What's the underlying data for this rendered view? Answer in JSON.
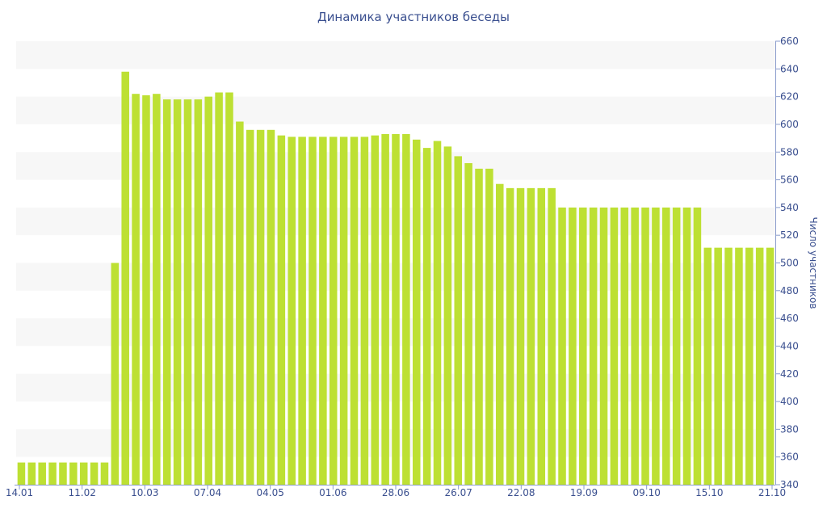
{
  "chart_data": {
    "type": "bar",
    "title": "Динамика участников беседы",
    "xlabel": "",
    "ylabel": "Число участников",
    "ylim": [
      340,
      660
    ],
    "yticks": [
      340,
      360,
      380,
      400,
      420,
      440,
      460,
      480,
      500,
      520,
      540,
      560,
      580,
      600,
      620,
      640,
      660
    ],
    "x_tick_labels": [
      "14.01",
      "11.02",
      "10.03",
      "07.04",
      "04.05",
      "01.06",
      "28.06",
      "26.07",
      "22.08",
      "19.09",
      "09.10",
      "15.10",
      "21.10"
    ],
    "values": [
      356,
      356,
      356,
      356,
      356,
      356,
      356,
      356,
      356,
      500,
      638,
      622,
      621,
      622,
      618,
      618,
      618,
      618,
      620,
      623,
      623,
      602,
      596,
      596,
      596,
      592,
      591,
      591,
      591,
      591,
      591,
      591,
      591,
      591,
      592,
      593,
      593,
      593,
      589,
      583,
      588,
      584,
      577,
      572,
      568,
      568,
      557,
      554,
      554,
      554,
      554,
      554,
      540,
      540,
      540,
      540,
      540,
      540,
      540,
      540,
      540,
      540,
      540,
      540,
      540,
      540,
      511,
      511,
      511,
      511,
      511,
      511,
      511
    ],
    "bar_color": "#bde033",
    "grid": "alternating horizontal bands",
    "y_axis_position": "right"
  }
}
